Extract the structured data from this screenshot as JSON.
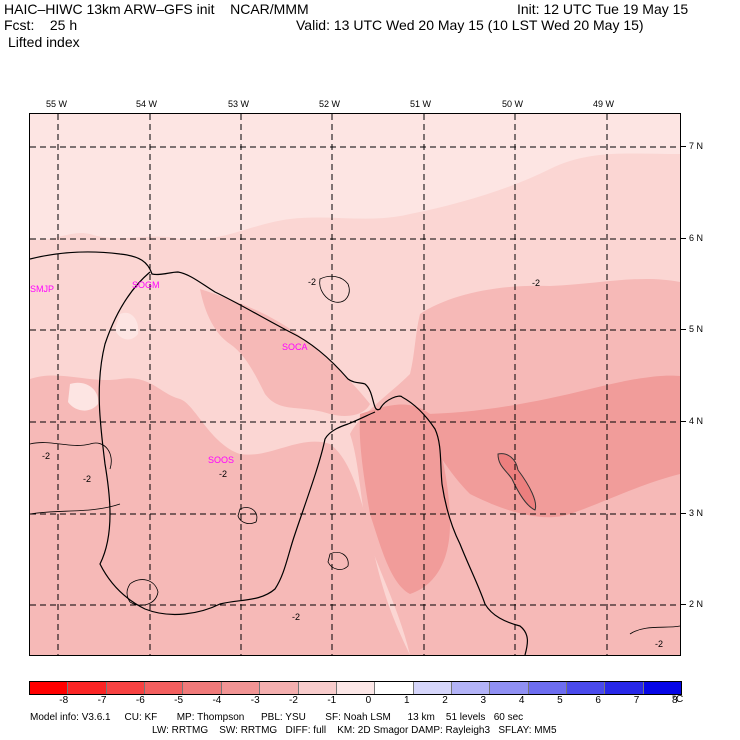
{
  "header": {
    "model_line": "HAIC–HIWC 13km ARW–GFS init    NCAR/MMM",
    "fcst_label": "Fcst:    25 h",
    "field_name": "Lifted index",
    "init_line": "Init: 12 UTC Tue 19 May 15",
    "valid_line": "Valid: 13 UTC Wed 20 May 15 (10 LST Wed 20 May 15)"
  },
  "map": {
    "lon_labels": [
      "55 W",
      "54 W",
      "53 W",
      "52 W",
      "51 W",
      "50 W",
      "49 W"
    ],
    "lat_labels": [
      "7 N",
      "6 N",
      "5 N",
      "4 N",
      "3 N",
      "2 N"
    ],
    "stations": [
      "SMJP",
      "SOGM",
      "SOCA",
      "SOOS"
    ],
    "contour_labels": [
      "-2",
      "-2",
      "-2",
      "-2",
      "-2",
      "-2",
      "-2"
    ]
  },
  "colorbar": {
    "values": [
      "-8",
      "-7",
      "-6",
      "-5",
      "-4",
      "-3",
      "-2",
      "-1",
      "0",
      "1",
      "2",
      "3",
      "4",
      "5",
      "6",
      "7",
      "8"
    ],
    "unit": "°C",
    "colors": [
      "#ff0000",
      "#fb2525",
      "#f74242",
      "#f35f5f",
      "#f07a7a",
      "#f19494",
      "#f4afaf",
      "#f8cccc",
      "#fce7e7",
      "#ffffff",
      "#d6d6fb",
      "#b3b3f7",
      "#9090f3",
      "#6d6df0",
      "#4a4aec",
      "#2828e8",
      "#0606e6"
    ]
  },
  "footer": {
    "line1": "Model info: V3.6.1     CU: KF       MP: Thompson      PBL: YSU       SF: Noah LSM      13 km    51 levels   60 sec",
    "line2": "LW: RRTMG    SW: RRTMG   DIFF: full    KM: 2D Smagor DAMP: Rayleigh3   SFLAY: MM5"
  }
}
